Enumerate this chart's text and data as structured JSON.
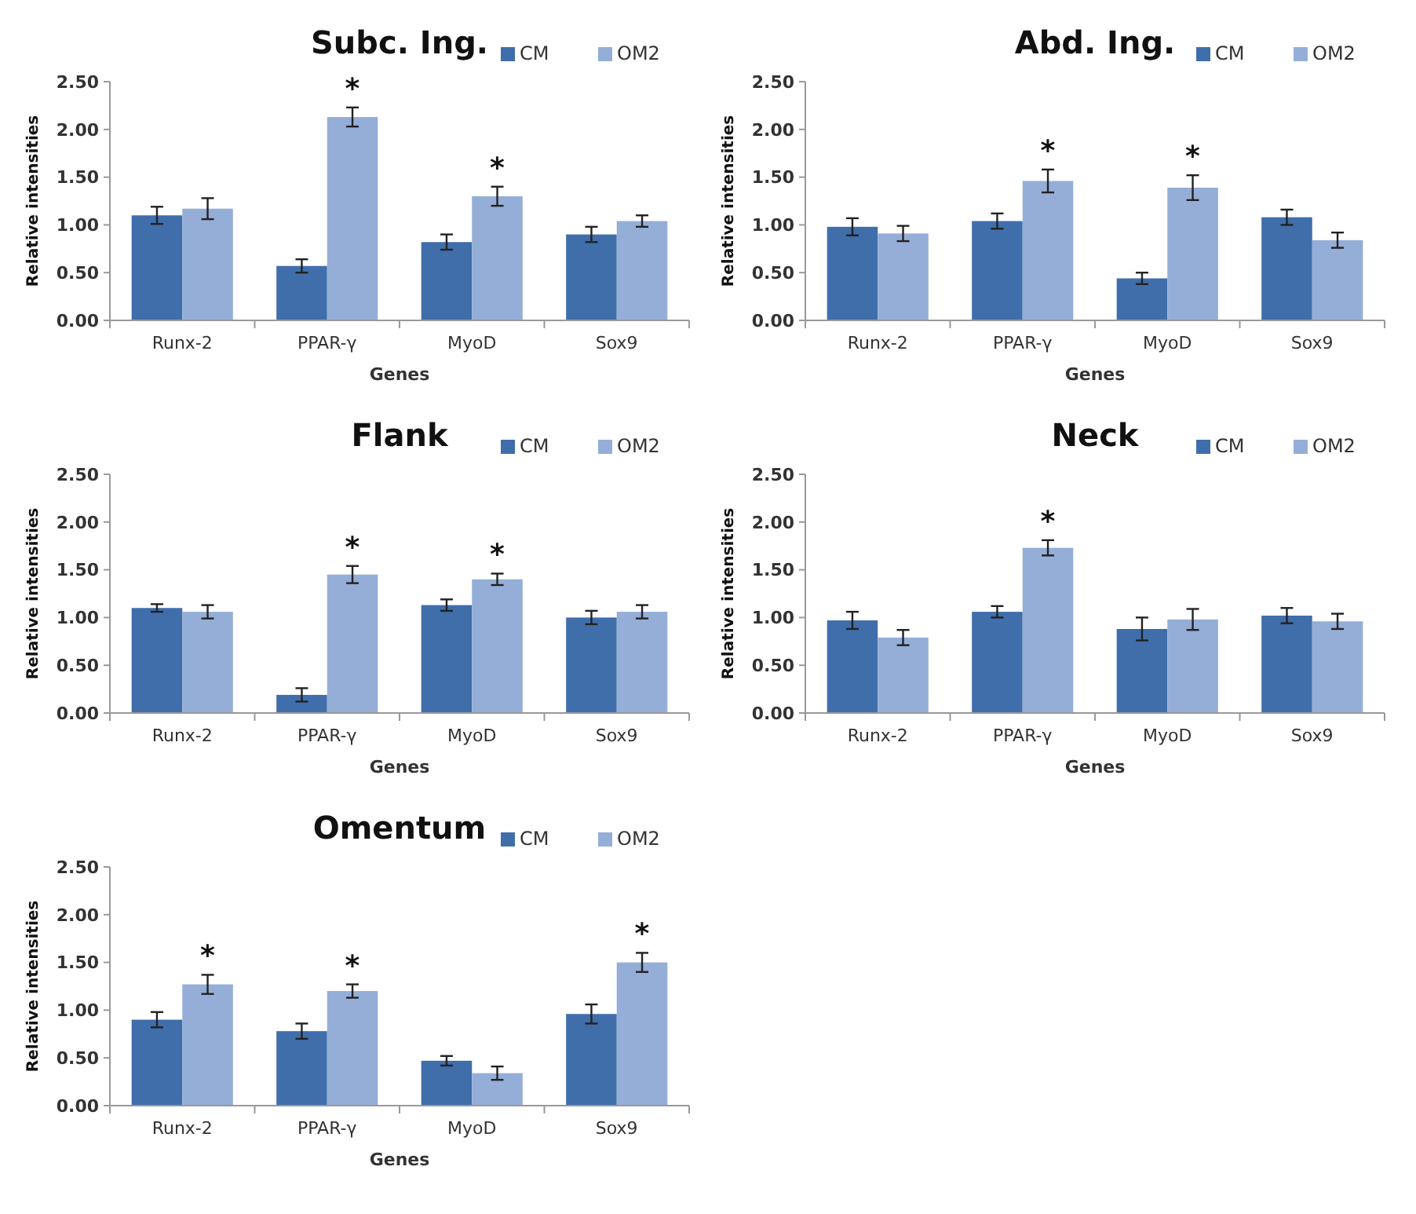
{
  "chart_data": [
    {
      "type": "bar",
      "title": "Subc. Ing.",
      "xlabel": "Genes",
      "ylabel": "Relative intensities",
      "categories": [
        "Runx-2",
        "PPAR-γ",
        "MyoD",
        "Sox9"
      ],
      "ylim": [
        0,
        2.5
      ],
      "yticks": [
        {
          "value": 0,
          "label": "0.00"
        },
        {
          "value": 0.5,
          "label": "0.50"
        },
        {
          "value": 1,
          "label": "1.00"
        },
        {
          "value": 1.5,
          "label": "1.50"
        },
        {
          "value": 2,
          "label": "2.00"
        },
        {
          "value": 2.5,
          "label": "2.50"
        }
      ],
      "legend": "top right",
      "grid": false,
      "series": [
        {
          "name": "CM",
          "color": "#3f6eab",
          "values": [
            1.1,
            0.57,
            0.82,
            0.9
          ],
          "errors": [
            0.09,
            0.07,
            0.08,
            0.08
          ]
        },
        {
          "name": "OM2",
          "color": "#95aed8",
          "values": [
            1.17,
            2.13,
            1.3,
            1.04
          ],
          "errors": [
            0.11,
            0.1,
            0.1,
            0.06
          ]
        }
      ],
      "annotations": [
        {
          "text": "*",
          "x": "PPAR-γ",
          "y": 2.13
        },
        {
          "text": "*",
          "x": "MyoD",
          "y": 1.3
        }
      ]
    },
    {
      "type": "bar",
      "title": "Abd. Ing.",
      "xlabel": "Genes",
      "ylabel": "Relative intensities",
      "categories": [
        "Runx-2",
        "PPAR-γ",
        "MyoD",
        "Sox9"
      ],
      "ylim": [
        0,
        2.5
      ],
      "yticks": [
        {
          "value": 0,
          "label": "0.00"
        },
        {
          "value": 0.5,
          "label": "0.50"
        },
        {
          "value": 1,
          "label": "1.00"
        },
        {
          "value": 1.5,
          "label": "1.50"
        },
        {
          "value": 2,
          "label": "2.00"
        },
        {
          "value": 2.5,
          "label": "2.50"
        }
      ],
      "legend": "top right",
      "grid": false,
      "series": [
        {
          "name": "CM",
          "color": "#3f6eab",
          "values": [
            0.98,
            1.04,
            0.44,
            1.08
          ],
          "errors": [
            0.09,
            0.08,
            0.06,
            0.08
          ]
        },
        {
          "name": "OM2",
          "color": "#95aed8",
          "values": [
            0.91,
            1.46,
            1.39,
            0.84
          ],
          "errors": [
            0.08,
            0.12,
            0.13,
            0.08
          ]
        }
      ],
      "annotations": [
        {
          "text": "*",
          "x": "PPAR-γ",
          "y": 1.46
        },
        {
          "text": "*",
          "x": "MyoD",
          "y": 1.39
        }
      ]
    },
    {
      "type": "bar",
      "title": "Flank",
      "xlabel": "Genes",
      "ylabel": "Relative intensities",
      "categories": [
        "Runx-2",
        "PPAR-γ",
        "MyoD",
        "Sox9"
      ],
      "ylim": [
        0,
        2.5
      ],
      "yticks": [
        {
          "value": 0,
          "label": "0.00"
        },
        {
          "value": 0.5,
          "label": "0.50"
        },
        {
          "value": 1,
          "label": "1.00"
        },
        {
          "value": 1.5,
          "label": "1.50"
        },
        {
          "value": 2,
          "label": "2.00"
        },
        {
          "value": 2.5,
          "label": "2.50"
        }
      ],
      "legend": "top right",
      "grid": false,
      "series": [
        {
          "name": "CM",
          "color": "#3f6eab",
          "values": [
            1.1,
            0.19,
            1.13,
            1.0
          ],
          "errors": [
            0.04,
            0.07,
            0.06,
            0.07
          ]
        },
        {
          "name": "OM2",
          "color": "#95aed8",
          "values": [
            1.06,
            1.45,
            1.4,
            1.06
          ],
          "errors": [
            0.07,
            0.09,
            0.06,
            0.07
          ]
        }
      ],
      "annotations": [
        {
          "text": "*",
          "x": "PPAR-γ",
          "y": 1.45
        },
        {
          "text": "*",
          "x": "MyoD",
          "y": 1.4
        }
      ]
    },
    {
      "type": "bar",
      "title": "Neck",
      "xlabel": "Genes",
      "ylabel": "Relative intensities",
      "categories": [
        "Runx-2",
        "PPAR-γ",
        "MyoD",
        "Sox9"
      ],
      "ylim": [
        0,
        2.5
      ],
      "yticks": [
        {
          "value": 0,
          "label": "0.00"
        },
        {
          "value": 0.5,
          "label": "0.50"
        },
        {
          "value": 1,
          "label": "1.00"
        },
        {
          "value": 1.5,
          "label": "1.50"
        },
        {
          "value": 2,
          "label": "2.00"
        },
        {
          "value": 2.5,
          "label": "2.50"
        }
      ],
      "legend": "top right",
      "grid": false,
      "series": [
        {
          "name": "CM",
          "color": "#3f6eab",
          "values": [
            0.97,
            1.06,
            0.88,
            1.02
          ],
          "errors": [
            0.09,
            0.06,
            0.12,
            0.08
          ]
        },
        {
          "name": "OM2",
          "color": "#95aed8",
          "values": [
            0.79,
            1.73,
            0.98,
            0.96
          ],
          "errors": [
            0.08,
            0.08,
            0.11,
            0.08
          ]
        }
      ],
      "annotations": [
        {
          "text": "*",
          "x": "PPAR-γ",
          "y": 1.73
        }
      ]
    },
    {
      "type": "bar",
      "title": "Omentum",
      "xlabel": "Genes",
      "ylabel": "Relative intensities",
      "categories": [
        "Runx-2",
        "PPAR-γ",
        "MyoD",
        "Sox9"
      ],
      "ylim": [
        0,
        2.5
      ],
      "yticks": [
        {
          "value": 0,
          "label": "0.00"
        },
        {
          "value": 0.5,
          "label": "0.50"
        },
        {
          "value": 1,
          "label": "1.00"
        },
        {
          "value": 1.5,
          "label": "1.50"
        },
        {
          "value": 2,
          "label": "2.00"
        },
        {
          "value": 2.5,
          "label": "2.50"
        }
      ],
      "legend": "top right",
      "grid": false,
      "series": [
        {
          "name": "CM",
          "color": "#3f6eab",
          "values": [
            0.9,
            0.78,
            0.47,
            0.96
          ],
          "errors": [
            0.08,
            0.08,
            0.05,
            0.1
          ]
        },
        {
          "name": "OM2",
          "color": "#95aed8",
          "values": [
            1.27,
            1.2,
            0.34,
            1.5
          ],
          "errors": [
            0.1,
            0.07,
            0.07,
            0.1
          ]
        }
      ],
      "annotations": [
        {
          "text": "*",
          "x": "Runx-2",
          "y": 1.27
        },
        {
          "text": "*",
          "x": "PPAR-γ",
          "y": 1.2
        },
        {
          "text": "*",
          "x": "Sox9",
          "y": 1.5
        }
      ]
    }
  ]
}
